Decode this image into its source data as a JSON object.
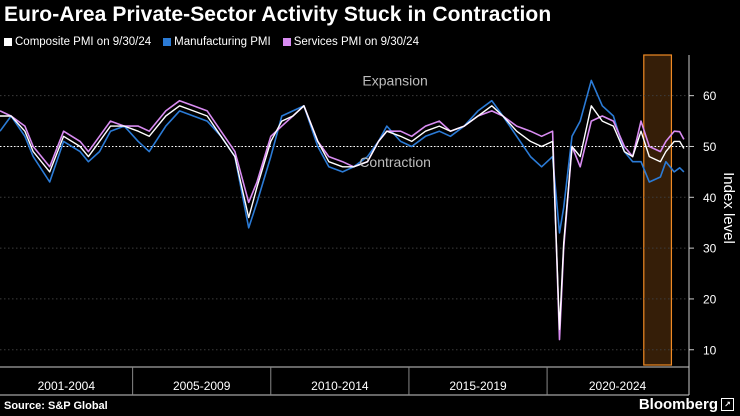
{
  "title": "Euro-Area Private-Sector Activity Stuck in Contraction",
  "legend": [
    {
      "label": "Composite PMI on 9/30/24",
      "color": "#ffffff"
    },
    {
      "label": "Manufacturing PMI",
      "color": "#2b7bd6"
    },
    {
      "label": "Services PMI on 9/30/24",
      "color": "#d98cf2"
    }
  ],
  "source": "Source: S&P Global",
  "brand": "Bloomberg",
  "brand_mark": "↗",
  "chart_data": {
    "type": "line",
    "ylabel": "Index level",
    "ylim": [
      7,
      68
    ],
    "yticks": [
      10,
      20,
      30,
      40,
      50,
      60
    ],
    "xlim": [
      2000.0,
      2024.9
    ],
    "period_labels": [
      {
        "label": "2001-2004",
        "from": 2000.0,
        "to": 2004.8
      },
      {
        "label": "2005-2009",
        "from": 2004.8,
        "to": 2009.8
      },
      {
        "label": "2010-2014",
        "from": 2009.8,
        "to": 2014.8
      },
      {
        "label": "2015-2019",
        "from": 2014.8,
        "to": 2019.8
      },
      {
        "label": "2020-2024",
        "from": 2019.8,
        "to": 2024.9
      }
    ],
    "reference_line": 50,
    "annotations": [
      {
        "text": "Expansion",
        "x": 2014.3,
        "y": 62
      },
      {
        "text": "Contraction",
        "x": 2014.3,
        "y": 46
      }
    ],
    "highlight": {
      "from": 2023.3,
      "to": 2024.3,
      "color": "#f08a24"
    },
    "series": [
      {
        "name": "Manufacturing PMI",
        "color": "#2b7bd6",
        "points": [
          [
            2000.0,
            53
          ],
          [
            2000.4,
            56
          ],
          [
            2000.9,
            52
          ],
          [
            2001.2,
            48
          ],
          [
            2001.8,
            43
          ],
          [
            2002.3,
            51
          ],
          [
            2002.9,
            49
          ],
          [
            2003.2,
            47
          ],
          [
            2003.6,
            49
          ],
          [
            2004.0,
            53
          ],
          [
            2004.5,
            54
          ],
          [
            2005.0,
            51
          ],
          [
            2005.4,
            49
          ],
          [
            2006.0,
            54
          ],
          [
            2006.5,
            57
          ],
          [
            2007.0,
            56
          ],
          [
            2007.5,
            55
          ],
          [
            2008.0,
            52
          ],
          [
            2008.5,
            48
          ],
          [
            2009.0,
            34
          ],
          [
            2009.3,
            39
          ],
          [
            2009.8,
            48
          ],
          [
            2010.2,
            56
          ],
          [
            2010.6,
            57
          ],
          [
            2011.0,
            58
          ],
          [
            2011.5,
            50
          ],
          [
            2011.9,
            46
          ],
          [
            2012.4,
            45
          ],
          [
            2012.8,
            46
          ],
          [
            2013.3,
            48
          ],
          [
            2013.7,
            51
          ],
          [
            2014.0,
            54
          ],
          [
            2014.5,
            51
          ],
          [
            2014.9,
            50
          ],
          [
            2015.4,
            52
          ],
          [
            2015.9,
            53
          ],
          [
            2016.3,
            52
          ],
          [
            2016.8,
            54
          ],
          [
            2017.3,
            57
          ],
          [
            2017.8,
            59
          ],
          [
            2018.2,
            56
          ],
          [
            2018.7,
            52
          ],
          [
            2019.2,
            48
          ],
          [
            2019.6,
            46
          ],
          [
            2020.0,
            48
          ],
          [
            2020.25,
            33
          ],
          [
            2020.4,
            38
          ],
          [
            2020.7,
            52
          ],
          [
            2021.0,
            55
          ],
          [
            2021.4,
            63
          ],
          [
            2021.8,
            58
          ],
          [
            2022.2,
            56
          ],
          [
            2022.6,
            49
          ],
          [
            2022.9,
            47
          ],
          [
            2023.2,
            47
          ],
          [
            2023.5,
            43
          ],
          [
            2023.9,
            44
          ],
          [
            2024.1,
            47
          ],
          [
            2024.4,
            45
          ],
          [
            2024.6,
            45.8
          ],
          [
            2024.75,
            45.0
          ]
        ]
      },
      {
        "name": "Services PMI on 9/30/24",
        "color": "#d98cf2",
        "points": [
          [
            2000.0,
            57
          ],
          [
            2000.4,
            56
          ],
          [
            2000.9,
            54
          ],
          [
            2001.2,
            50
          ],
          [
            2001.8,
            46
          ],
          [
            2002.3,
            53
          ],
          [
            2002.9,
            51
          ],
          [
            2003.2,
            49
          ],
          [
            2003.6,
            52
          ],
          [
            2004.0,
            55
          ],
          [
            2004.5,
            54
          ],
          [
            2005.0,
            54
          ],
          [
            2005.4,
            53
          ],
          [
            2006.0,
            57
          ],
          [
            2006.5,
            59
          ],
          [
            2007.0,
            58
          ],
          [
            2007.5,
            57
          ],
          [
            2008.0,
            53
          ],
          [
            2008.5,
            49
          ],
          [
            2009.0,
            39
          ],
          [
            2009.3,
            43
          ],
          [
            2009.8,
            52
          ],
          [
            2010.2,
            54
          ],
          [
            2010.6,
            56
          ],
          [
            2011.0,
            58
          ],
          [
            2011.5,
            51
          ],
          [
            2011.9,
            48
          ],
          [
            2012.4,
            47
          ],
          [
            2012.8,
            46
          ],
          [
            2013.3,
            47
          ],
          [
            2013.7,
            51
          ],
          [
            2014.0,
            53
          ],
          [
            2014.5,
            53
          ],
          [
            2014.9,
            52
          ],
          [
            2015.4,
            54
          ],
          [
            2015.9,
            55
          ],
          [
            2016.3,
            53
          ],
          [
            2016.8,
            54
          ],
          [
            2017.3,
            56
          ],
          [
            2017.8,
            57
          ],
          [
            2018.2,
            56
          ],
          [
            2018.7,
            54
          ],
          [
            2019.2,
            53
          ],
          [
            2019.6,
            52
          ],
          [
            2020.0,
            53
          ],
          [
            2020.25,
            12
          ],
          [
            2020.4,
            30
          ],
          [
            2020.7,
            50
          ],
          [
            2021.0,
            46
          ],
          [
            2021.4,
            55
          ],
          [
            2021.8,
            56
          ],
          [
            2022.2,
            55
          ],
          [
            2022.6,
            50
          ],
          [
            2022.9,
            48
          ],
          [
            2023.2,
            55
          ],
          [
            2023.5,
            50
          ],
          [
            2023.9,
            49
          ],
          [
            2024.1,
            51
          ],
          [
            2024.4,
            53
          ],
          [
            2024.6,
            52.9
          ],
          [
            2024.75,
            51.4
          ]
        ]
      },
      {
        "name": "Composite PMI on 9/30/24",
        "color": "#ffffff",
        "points": [
          [
            2000.0,
            56
          ],
          [
            2000.4,
            56
          ],
          [
            2000.9,
            53
          ],
          [
            2001.2,
            49
          ],
          [
            2001.8,
            45
          ],
          [
            2002.3,
            52
          ],
          [
            2002.9,
            50
          ],
          [
            2003.2,
            48
          ],
          [
            2003.6,
            51
          ],
          [
            2004.0,
            54
          ],
          [
            2004.5,
            54
          ],
          [
            2005.0,
            53
          ],
          [
            2005.4,
            52
          ],
          [
            2006.0,
            56
          ],
          [
            2006.5,
            58
          ],
          [
            2007.0,
            57
          ],
          [
            2007.5,
            56
          ],
          [
            2008.0,
            52
          ],
          [
            2008.5,
            48
          ],
          [
            2009.0,
            36
          ],
          [
            2009.3,
            42
          ],
          [
            2009.8,
            51
          ],
          [
            2010.2,
            55
          ],
          [
            2010.6,
            56
          ],
          [
            2011.0,
            58
          ],
          [
            2011.5,
            51
          ],
          [
            2011.9,
            47
          ],
          [
            2012.4,
            46
          ],
          [
            2012.8,
            46
          ],
          [
            2013.3,
            47
          ],
          [
            2013.7,
            51
          ],
          [
            2014.0,
            53
          ],
          [
            2014.5,
            52
          ],
          [
            2014.9,
            51
          ],
          [
            2015.4,
            53
          ],
          [
            2015.9,
            54
          ],
          [
            2016.3,
            53
          ],
          [
            2016.8,
            54
          ],
          [
            2017.3,
            56
          ],
          [
            2017.8,
            58
          ],
          [
            2018.2,
            56
          ],
          [
            2018.7,
            53
          ],
          [
            2019.2,
            51
          ],
          [
            2019.6,
            50
          ],
          [
            2020.0,
            51
          ],
          [
            2020.25,
            14
          ],
          [
            2020.4,
            31
          ],
          [
            2020.7,
            50
          ],
          [
            2021.0,
            48
          ],
          [
            2021.4,
            58
          ],
          [
            2021.8,
            55
          ],
          [
            2022.2,
            54
          ],
          [
            2022.6,
            49
          ],
          [
            2022.9,
            48
          ],
          [
            2023.2,
            53
          ],
          [
            2023.5,
            48
          ],
          [
            2023.9,
            47
          ],
          [
            2024.1,
            49
          ],
          [
            2024.4,
            51
          ],
          [
            2024.6,
            51.0
          ],
          [
            2024.75,
            49.6
          ]
        ]
      }
    ]
  }
}
